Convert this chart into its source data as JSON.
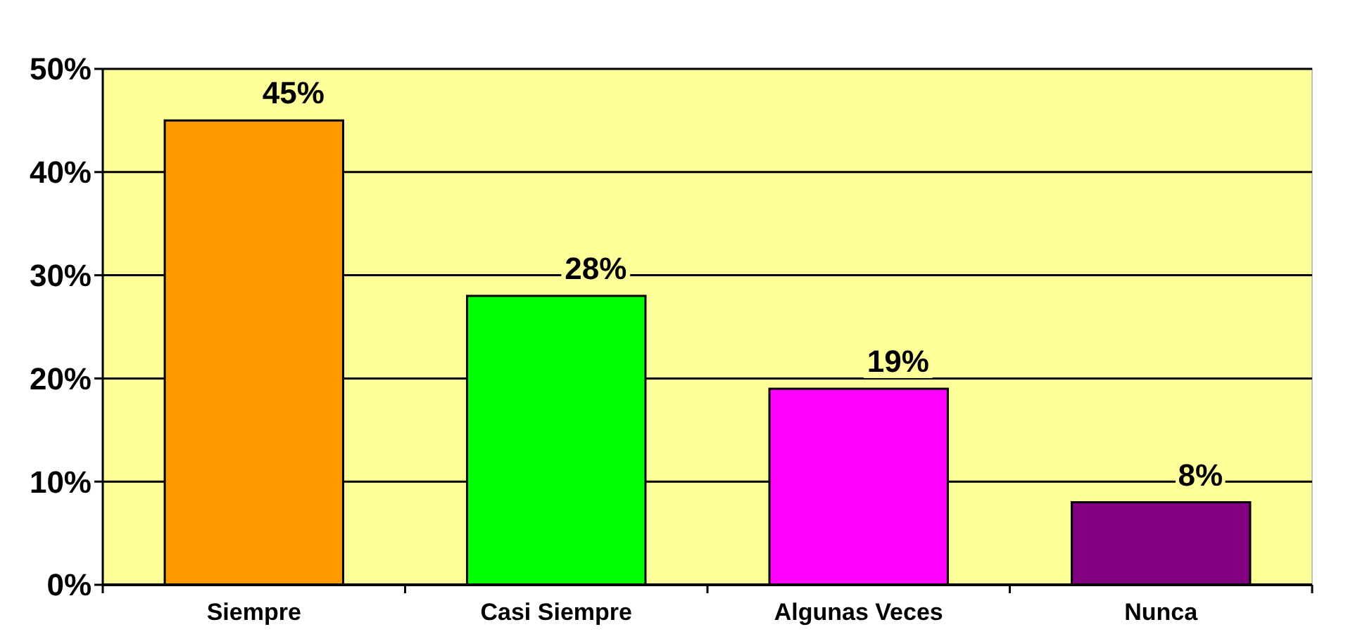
{
  "chart_data": {
    "type": "bar",
    "categories": [
      "Siempre",
      "Casi Siempre",
      "Algunas Veces",
      "Nunca"
    ],
    "values": [
      45,
      28,
      19,
      8
    ],
    "colors": [
      "#ff9900",
      "#00ff00",
      "#ff00ff",
      "#800080"
    ],
    "value_labels": [
      "45%",
      "28%",
      "19%",
      "8%"
    ],
    "ylim": [
      0,
      50
    ],
    "yticks": [
      {
        "value": 0,
        "label": "0%"
      },
      {
        "value": 10,
        "label": "10%"
      },
      {
        "value": 20,
        "label": "20%"
      },
      {
        "value": 30,
        "label": "30%"
      },
      {
        "value": 40,
        "label": "40%"
      },
      {
        "value": 50,
        "label": "50%"
      }
    ],
    "grid": "y"
  }
}
